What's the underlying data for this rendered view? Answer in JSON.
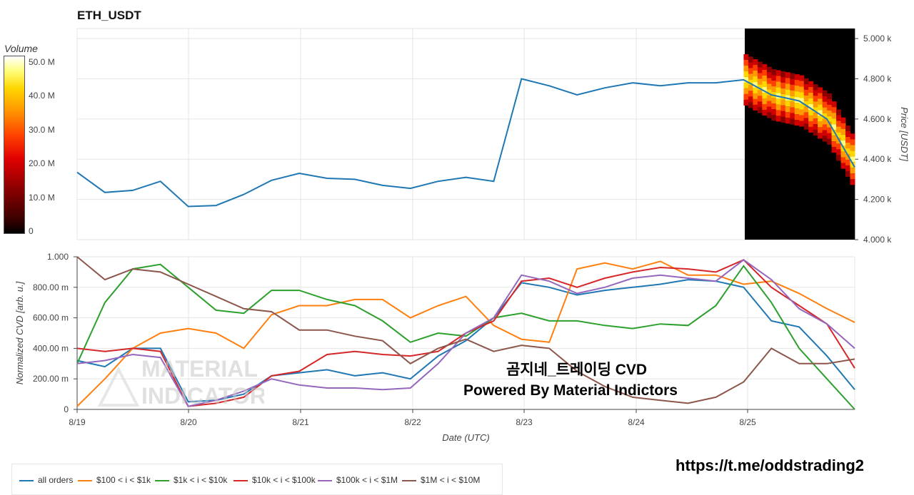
{
  "title": "ETH_USDT",
  "colorbar": {
    "title": "Volume",
    "ticks": [
      "50.0 M",
      "40.0 M",
      "30.0 M",
      "20.0 M",
      "10.0 M",
      "0"
    ]
  },
  "cvd_text": {
    "line1": "곰지네_트레이딩 CVD",
    "line2": "Powered By Material Indictors"
  },
  "watermark": {
    "line1": "MATERIAL",
    "line2": "INDICATORS"
  },
  "url": "https://t.me/oddstrading2",
  "colors": {
    "all orders": "#1f77b4",
    "$100 < i < $1k": "#ff7f0e",
    "$1k < i < $10k": "#2ca02c",
    "$10k < i < $100k": "#d62728",
    "$100k < i < $1M": "#9467bd",
    "$1M < i < $10M": "#8c564b"
  },
  "chart_data": [
    {
      "type": "line",
      "title": "ETH_USDT",
      "xlabel": "",
      "ylabel": "Price [USDT]",
      "ylim": [
        4000,
        5050
      ],
      "yticks": [
        "5.000 k",
        "4.800 k",
        "4.600 k",
        "4.400 k",
        "4.200 k",
        "4.000 k"
      ],
      "x": [
        "8/19",
        "8/19 06:00",
        "8/19 12:00",
        "8/19 18:00",
        "8/20",
        "8/20 06:00",
        "8/20 12:00",
        "8/20 18:00",
        "8/21",
        "8/21 06:00",
        "8/21 12:00",
        "8/21 18:00",
        "8/22",
        "8/22 06:00",
        "8/22 12:00",
        "8/22 18:00",
        "8/23",
        "8/23 06:00",
        "8/23 12:00",
        "8/23 18:00",
        "8/24",
        "8/24 06:00",
        "8/24 12:00",
        "8/24 18:00",
        "8/25",
        "8/25 06:00",
        "8/25 12:00",
        "8/25 18:00",
        "8/25 23:00"
      ],
      "series": [
        {
          "name": "",
          "values": [
            4335,
            4235,
            4245,
            4290,
            4165,
            4170,
            4225,
            4295,
            4330,
            4305,
            4300,
            4270,
            4255,
            4290,
            4310,
            4290,
            4800,
            4765,
            4720,
            4755,
            4780,
            4765,
            4780,
            4780,
            4795,
            4720,
            4690,
            4600,
            4360
          ]
        }
      ],
      "heatmap": {
        "title": "Volume",
        "range": [
          0,
          52000000
        ],
        "x_range": [
          "8/25",
          "8/25 23:00"
        ]
      }
    },
    {
      "type": "line",
      "xlabel": "Date (UTC)",
      "ylabel": "Normalized CVD [arb. u.]",
      "ylim": [
        0,
        1.0
      ],
      "yticks": [
        "1.000",
        "800.00 m",
        "600.00 m",
        "400.00 m",
        "200.00 m",
        "0"
      ],
      "categories": [
        "8/19",
        "8/20",
        "8/21",
        "8/22",
        "8/23",
        "8/24",
        "8/25"
      ],
      "x": [
        "8/19",
        "8/19 06:00",
        "8/19 12:00",
        "8/19 18:00",
        "8/20",
        "8/20 06:00",
        "8/20 12:00",
        "8/20 18:00",
        "8/21",
        "8/21 06:00",
        "8/21 12:00",
        "8/21 18:00",
        "8/22",
        "8/22 06:00",
        "8/22 12:00",
        "8/22 18:00",
        "8/23",
        "8/23 06:00",
        "8/23 12:00",
        "8/23 18:00",
        "8/24",
        "8/24 06:00",
        "8/24 12:00",
        "8/24 18:00",
        "8/25",
        "8/25 06:00",
        "8/25 12:00",
        "8/25 18:00",
        "8/25 23:00"
      ],
      "series": [
        {
          "name": "all orders",
          "values": [
            0.32,
            0.28,
            0.4,
            0.4,
            0.05,
            0.06,
            0.1,
            0.22,
            0.24,
            0.26,
            0.22,
            0.24,
            0.2,
            0.35,
            0.45,
            0.6,
            0.83,
            0.8,
            0.75,
            0.78,
            0.8,
            0.82,
            0.85,
            0.84,
            0.8,
            0.58,
            0.54,
            0.35,
            0.13
          ]
        },
        {
          "name": "$100 < i < $1k",
          "values": [
            0.02,
            0.2,
            0.4,
            0.5,
            0.53,
            0.5,
            0.4,
            0.62,
            0.68,
            0.68,
            0.72,
            0.72,
            0.6,
            0.68,
            0.74,
            0.55,
            0.46,
            0.44,
            0.92,
            0.96,
            0.92,
            0.97,
            0.88,
            0.88,
            0.82,
            0.84,
            0.76,
            0.66,
            0.57
          ]
        },
        {
          "name": "$1k < i < $10k",
          "values": [
            0.3,
            0.7,
            0.92,
            0.95,
            0.8,
            0.65,
            0.63,
            0.78,
            0.78,
            0.72,
            0.68,
            0.58,
            0.44,
            0.5,
            0.48,
            0.6,
            0.63,
            0.58,
            0.58,
            0.55,
            0.53,
            0.56,
            0.55,
            0.68,
            0.94,
            0.7,
            0.4,
            0.2,
            0.0
          ]
        },
        {
          "name": "$10k < i < $100k",
          "values": [
            0.4,
            0.38,
            0.4,
            0.38,
            0.02,
            0.04,
            0.08,
            0.22,
            0.25,
            0.36,
            0.38,
            0.36,
            0.35,
            0.38,
            0.5,
            0.58,
            0.84,
            0.86,
            0.8,
            0.86,
            0.9,
            0.93,
            0.92,
            0.9,
            0.98,
            0.8,
            0.68,
            0.56,
            0.27
          ]
        },
        {
          "name": "$100k < i < $1M",
          "values": [
            0.3,
            0.32,
            0.36,
            0.34,
            0.02,
            0.06,
            0.12,
            0.2,
            0.16,
            0.14,
            0.14,
            0.13,
            0.14,
            0.3,
            0.5,
            0.6,
            0.88,
            0.84,
            0.76,
            0.8,
            0.86,
            0.88,
            0.86,
            0.84,
            0.98,
            0.85,
            0.66,
            0.56,
            0.4
          ]
        },
        {
          "name": "$1M < i < $10M",
          "values": [
            1.0,
            0.85,
            0.92,
            0.9,
            0.82,
            0.74,
            0.66,
            0.64,
            0.52,
            0.52,
            0.48,
            0.45,
            0.3,
            0.4,
            0.46,
            0.38,
            0.42,
            0.4,
            0.25,
            0.15,
            0.08,
            0.06,
            0.04,
            0.08,
            0.18,
            0.4,
            0.3,
            0.3,
            0.33
          ]
        }
      ]
    }
  ]
}
